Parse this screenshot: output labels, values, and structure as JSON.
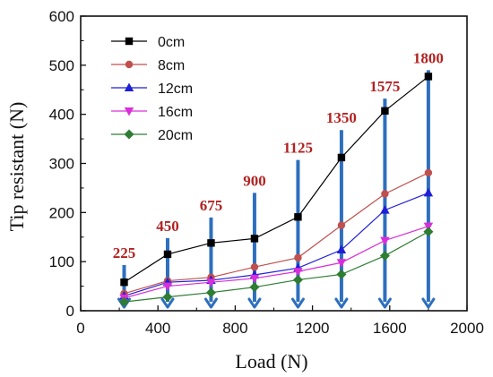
{
  "chart_data": {
    "type": "line",
    "xlabel": "Load (N)",
    "ylabel": "Tip resistant (N)",
    "xlim": [
      0,
      2000
    ],
    "ylim": [
      0,
      600
    ],
    "xticks": [
      "0",
      "400",
      "800",
      "1200",
      "1600",
      "2000"
    ],
    "yticks": [
      "0",
      "100",
      "200",
      "300",
      "400",
      "500",
      "600"
    ],
    "x": [
      225,
      450,
      675,
      900,
      1125,
      1350,
      1575,
      1800
    ],
    "series": [
      {
        "name": "0cm",
        "color": "#000000",
        "marker": "square",
        "values": [
          58,
          115,
          138,
          147,
          191,
          312,
          407,
          477
        ]
      },
      {
        "name": "8cm",
        "color": "#c0504d",
        "marker": "circle",
        "values": [
          35,
          61,
          68,
          89,
          108,
          174,
          238,
          281
        ]
      },
      {
        "name": "12cm",
        "color": "#1f1fd6",
        "marker": "triangle-up",
        "values": [
          30,
          58,
          62,
          73,
          87,
          124,
          205,
          240
        ]
      },
      {
        "name": "16cm",
        "color": "#d92ed9",
        "marker": "triangle-down",
        "values": [
          26,
          50,
          58,
          66,
          80,
          98,
          143,
          172
        ]
      },
      {
        "name": "20cm",
        "color": "#2e7d32",
        "marker": "diamond",
        "values": [
          18,
          28,
          37,
          48,
          63,
          74,
          112,
          161
        ]
      }
    ],
    "annotations": {
      "type": "vertical-arrows",
      "color": "#2e6fbe",
      "label_color": "#b22222",
      "labels": [
        "225",
        "450",
        "675",
        "900",
        "1125",
        "1350",
        "1575",
        "1800"
      ],
      "tops": [
        93,
        148,
        190,
        240,
        307,
        368,
        432,
        490
      ]
    },
    "legend_position": "top-left",
    "grid": false
  }
}
